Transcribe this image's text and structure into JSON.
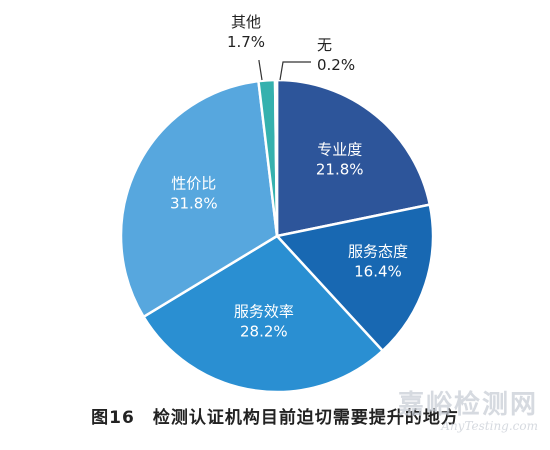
{
  "chart_data": {
    "type": "pie",
    "slices": [
      {
        "label": "专业度",
        "value": 21.8,
        "value_label": "21.8%",
        "color": "#2d559a"
      },
      {
        "label": "服务态度",
        "value": 16.4,
        "value_label": "16.4%",
        "color": "#1868b2"
      },
      {
        "label": "服务效率",
        "value": 28.2,
        "value_label": "28.2%",
        "color": "#2a8fd2"
      },
      {
        "label": "性价比",
        "value": 31.8,
        "value_label": "31.8%",
        "color": "#57a7de"
      },
      {
        "label": "其他",
        "value": 1.7,
        "value_label": "1.7%",
        "color": "#35b1ae"
      },
      {
        "label": "无",
        "value": 0.2,
        "value_label": "0.2%",
        "color": "#5a6d8c"
      }
    ],
    "legend": "none"
  },
  "caption": {
    "figure_number": "图16",
    "text": "检测认证机构目前迫切需要提升的地方"
  },
  "watermark": {
    "main": "嘉峪检测网",
    "sub": "AnyTesting.com"
  }
}
